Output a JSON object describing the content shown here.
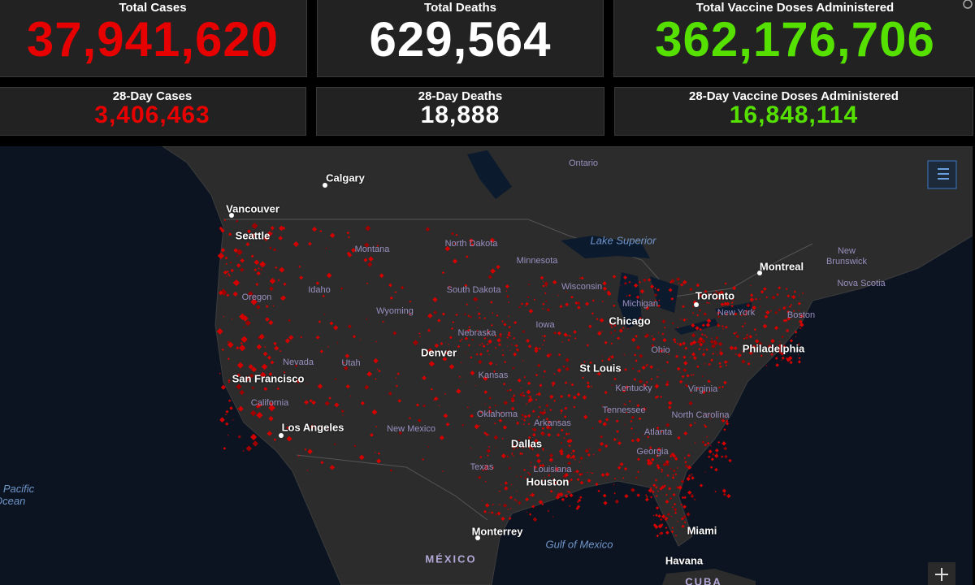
{
  "stats": [
    {
      "label": "Total Cases",
      "value": "37,941,620"
    },
    {
      "label": "Total Deaths",
      "value": "629,564"
    },
    {
      "label": "Total Vaccine Doses Administered",
      "value": "362,176,706"
    }
  ],
  "stats_28day": [
    {
      "label": "28-Day Cases",
      "value": "3,406,463"
    },
    {
      "label": "28-Day Deaths",
      "value": "18,888"
    },
    {
      "label": "28-Day Vaccine Doses Administered",
      "value": "16,848,114"
    }
  ],
  "map": {
    "labels": [
      "Ontario",
      "Calgary",
      "Vancouver",
      "Seattle",
      "Lake Superior",
      "Montreal",
      "New Brunswick",
      "Nova Scotia",
      "Toronto",
      "Minnesota",
      "North Dakota",
      "Montana",
      "South Dakota",
      "Wisconsin",
      "Michigan",
      "Idaho",
      "Oregon",
      "Wyoming",
      "Nebraska",
      "Iowa",
      "Chicago",
      "New York",
      "Boston",
      "Philadelphia",
      "Denver",
      "Nevada",
      "Utah",
      "San Francisco",
      "Kansas",
      "St Louis",
      "Ohio",
      "Kentucky",
      "Virginia",
      "California",
      "Tennessee",
      "North Carolina",
      "Oklahoma",
      "Arkansas",
      "Los Angeles",
      "New Mexico",
      "Atlanta",
      "Dallas",
      "Georgia",
      "Texas",
      "Louisiana",
      "Houston",
      "Monterrey",
      "Miami",
      "Gulf of Mexico",
      "MÉXICO",
      "Havana",
      "CUBA",
      "h Pacific Ocean"
    ]
  }
}
